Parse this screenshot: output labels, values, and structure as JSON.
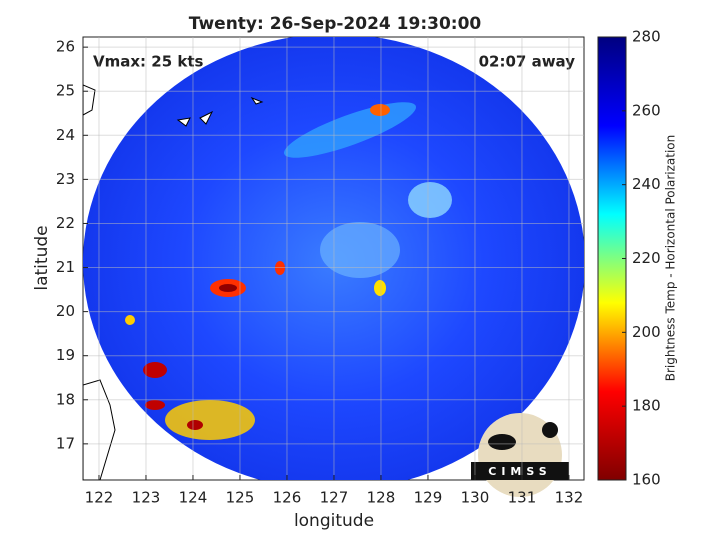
{
  "chart_data": {
    "type": "swath",
    "title": "Twenty: 26-Sep-2024 19:30:00",
    "annotations": [
      "Vmax: 25 kts",
      "02:07 away"
    ],
    "x_label": "longitude",
    "y_label": "latitude",
    "xlim": [
      121.66,
      132.32
    ],
    "xticks": [
      122,
      123,
      124,
      125,
      126,
      127,
      128,
      129,
      130,
      131,
      132
    ],
    "ylim": [
      16.18,
      26.23
    ],
    "yticks": [
      17,
      18,
      19,
      20,
      21,
      22,
      23,
      24,
      25,
      26
    ],
    "grid": true,
    "colorbar": {
      "label": "Brightness Temp - Horizontal Polarization",
      "lim": [
        160,
        280
      ],
      "ticks": [
        160,
        180,
        200,
        220,
        240,
        260,
        280
      ],
      "colormap": [
        "#800000",
        "#ff0000",
        "#ffff00",
        "#00ffff",
        "#0000ff",
        "#000080"
      ]
    },
    "watermark": "CIMSS"
  }
}
